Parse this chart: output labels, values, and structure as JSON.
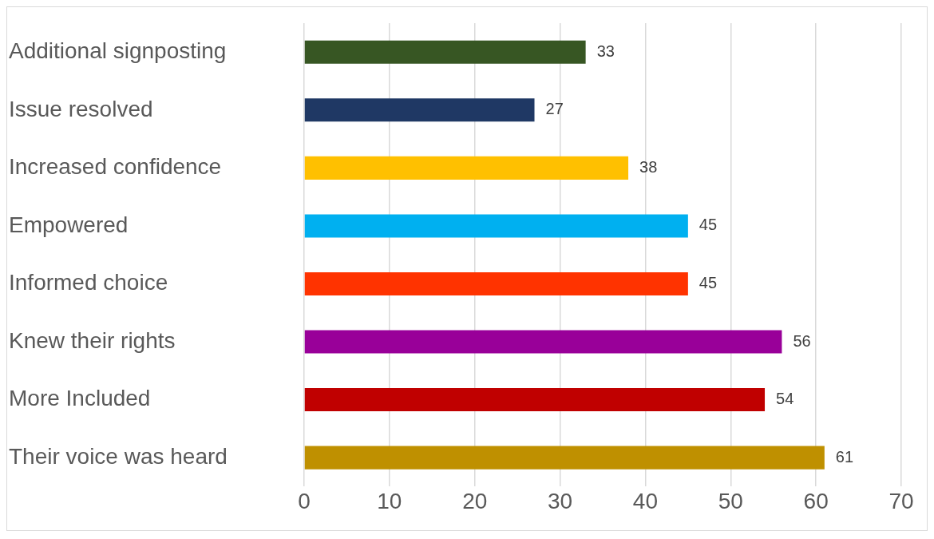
{
  "chart_data": {
    "type": "bar",
    "orientation": "horizontal",
    "categories": [
      "Additional signposting",
      "Issue resolved",
      "Increased confidence",
      "Empowered",
      "Informed choice",
      "Knew their rights",
      "More Included",
      "Their voice was heard"
    ],
    "values": [
      33,
      27,
      38,
      45,
      45,
      56,
      54,
      61
    ],
    "colors": [
      "#375623",
      "#1f3864",
      "#ffc000",
      "#00b0f0",
      "#ff3300",
      "#990099",
      "#c00000",
      "#bf9000"
    ],
    "xlim": [
      0,
      70
    ],
    "xticks": [
      0,
      10,
      20,
      30,
      40,
      50,
      60,
      70
    ],
    "grid": "x",
    "data_labels": true,
    "legend": false
  }
}
